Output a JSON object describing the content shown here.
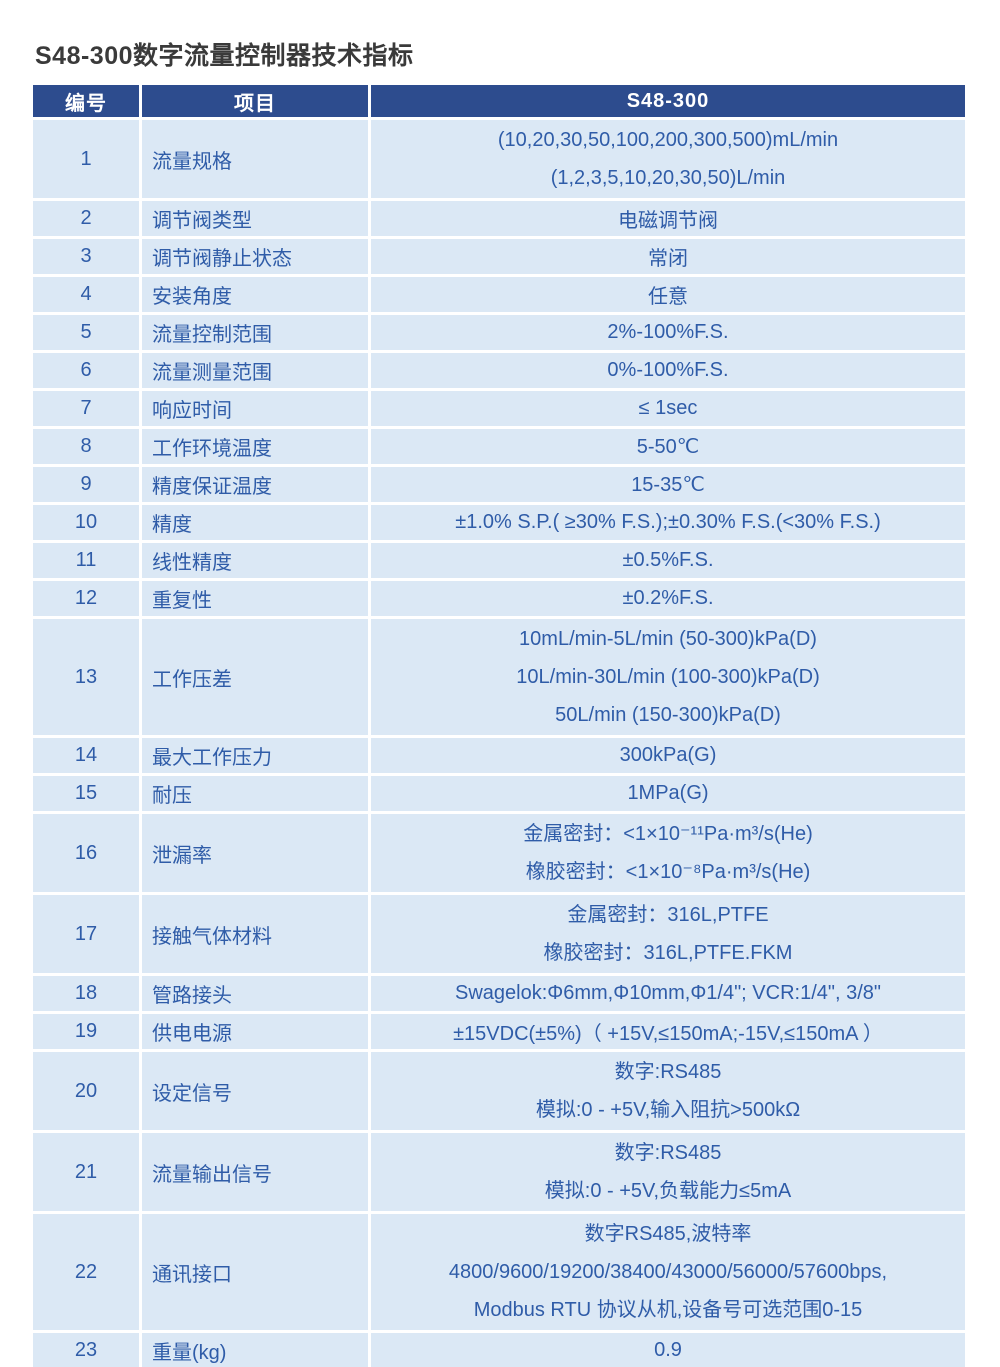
{
  "page_title": "S48-300数字流量控制器技术指标",
  "colors": {
    "header_bg": "#2d4c8e",
    "row_bg": "#dbe8f5",
    "cell_text": "#2f5ca8",
    "header_text": "#ffffff",
    "title_text": "#3a3a3a"
  },
  "table": {
    "headers": [
      "编号",
      "项目",
      "S48-300"
    ],
    "rows": [
      {
        "no": "1",
        "item": "流量规格",
        "values": [
          "(10,20,30,50,100,200,300,500)mL/min",
          "(1,2,3,5,10,20,30,50)L/min"
        ]
      },
      {
        "no": "2",
        "item": "调节阀类型",
        "values": [
          "电磁调节阀"
        ]
      },
      {
        "no": "3",
        "item": "调节阀静止状态",
        "values": [
          "常闭"
        ]
      },
      {
        "no": "4",
        "item": "安装角度",
        "values": [
          "任意"
        ]
      },
      {
        "no": "5",
        "item": "流量控制范围",
        "values": [
          "2%-100%F.S."
        ]
      },
      {
        "no": "6",
        "item": "流量测量范围",
        "values": [
          "0%-100%F.S."
        ]
      },
      {
        "no": "7",
        "item": "响应时间",
        "values": [
          "≤ 1sec"
        ]
      },
      {
        "no": "8",
        "item": "工作环境温度",
        "values": [
          "5-50℃"
        ]
      },
      {
        "no": "9",
        "item": "精度保证温度",
        "values": [
          "15-35℃"
        ]
      },
      {
        "no": "10",
        "item": "精度",
        "values": [
          "±1.0% S.P.( ≥30% F.S.);±0.30% F.S.(<30% F.S.)"
        ]
      },
      {
        "no": "11",
        "item": "线性精度",
        "values": [
          "±0.5%F.S."
        ]
      },
      {
        "no": "12",
        "item": "重复性",
        "values": [
          "±0.2%F.S."
        ]
      },
      {
        "no": "13",
        "item": "工作压差",
        "values": [
          "10mL/min-5L/min (50-300)kPa(D)",
          "10L/min-30L/min (100-300)kPa(D)",
          "50L/min (150-300)kPa(D)"
        ]
      },
      {
        "no": "14",
        "item": "最大工作压力",
        "values": [
          "300kPa(G)"
        ]
      },
      {
        "no": "15",
        "item": "耐压",
        "values": [
          "1MPa(G)"
        ]
      },
      {
        "no": "16",
        "item": "泄漏率",
        "values": [
          "金属密封：<1×10⁻¹¹Pa·m³/s(He)",
          "橡胶密封：<1×10⁻⁸Pa·m³/s(He)"
        ]
      },
      {
        "no": "17",
        "item": "接触气体材料",
        "values": [
          "金属密封：316L,PTFE",
          "橡胶密封：316L,PTFE.FKM"
        ]
      },
      {
        "no": "18",
        "item": "管路接头",
        "values": [
          "Swagelok:Φ6mm,Φ10mm,Φ1/4\"; VCR:1/4\", 3/8\""
        ]
      },
      {
        "no": "19",
        "item": "供电电源",
        "values": [
          "±15VDC(±5%)（ +15V,≤150mA;-15V,≤150mA ）"
        ]
      },
      {
        "no": "20",
        "item": "设定信号",
        "values": [
          "数字:RS485",
          "模拟:0 - +5V,输入阻抗>500kΩ"
        ]
      },
      {
        "no": "21",
        "item": "流量输出信号",
        "values": [
          "数字:RS485",
          "模拟:0 - +5V,负载能力≤5mA"
        ]
      },
      {
        "no": "22",
        "item": "通讯接口",
        "values": [
          "数字RS485,波特率",
          "4800/9600/19200/38400/43000/56000/57600bps,",
          "Modbus RTU 协议从机,设备号可选范围0-15"
        ]
      },
      {
        "no": "23",
        "item": "重量(kg)",
        "values": [
          "0.9"
        ]
      }
    ]
  }
}
